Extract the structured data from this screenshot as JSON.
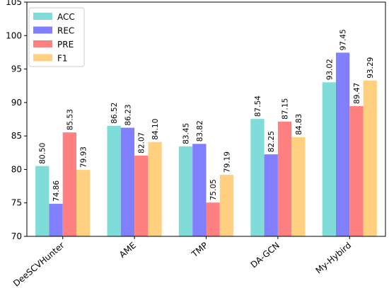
{
  "chart_data": {
    "type": "bar",
    "title": "",
    "xlabel": "",
    "ylabel": "",
    "ylim": [
      70,
      105
    ],
    "yticks": [
      70,
      75,
      80,
      85,
      90,
      95,
      100,
      105
    ],
    "grid": false,
    "legend_position": "top-left",
    "categories": [
      "DeeSCVHunter",
      "AME",
      "TMP",
      "DA-GCN",
      "My-Hybird"
    ],
    "series": [
      {
        "name": "ACC",
        "color": "#7fdcd8",
        "values": [
          80.5,
          86.52,
          83.45,
          87.54,
          93.02
        ],
        "labels": [
          "80.50",
          "86.52",
          "83.45",
          "87.54",
          "93.02"
        ]
      },
      {
        "name": "REC",
        "color": "#8080ff",
        "values": [
          74.86,
          86.23,
          83.82,
          82.25,
          97.45
        ],
        "labels": [
          "74.86",
          "86.23",
          "83.82",
          "82.25",
          "97.45"
        ]
      },
      {
        "name": "PRE",
        "color": "#ff8080",
        "values": [
          85.53,
          82.07,
          75.05,
          87.15,
          89.47
        ],
        "labels": [
          "85.53",
          "82.07",
          "75.05",
          "87.15",
          "89.47"
        ]
      },
      {
        "name": "F1",
        "color": "#ffd080",
        "values": [
          79.93,
          84.1,
          79.19,
          84.83,
          93.29
        ],
        "labels": [
          "79.93",
          "84.10",
          "79.19",
          "84.83",
          "93.29"
        ]
      }
    ]
  }
}
